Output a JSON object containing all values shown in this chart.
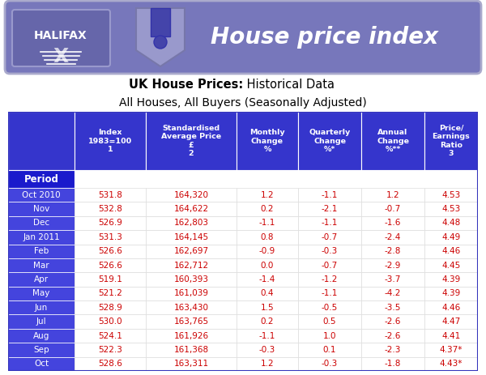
{
  "title_bold": "UK House Prices:",
  "title_normal": " Historical Data",
  "subtitle": "All Houses, All Buyers (Seasonally Adjusted)",
  "header_bg": "#3535cc",
  "period_bg": "#1a1a99",
  "row_bg_white": "#ffffff",
  "period_col_bg": "#4444dd",
  "banner_bg": "#7777bb",
  "col_headers": [
    "Index\n1983=100\n1",
    "Standardised\nAverage Price\n£\n2",
    "Monthly\nChange\n%",
    "Quarterly\nChange\n%*",
    "Annual\nChange\n%**",
    "Price/\nEarnings\nRatio\n3"
  ],
  "periods": [
    "Oct 2010",
    "Nov",
    "Dec",
    "Jan 2011",
    "Feb",
    "Mar",
    "Apr",
    "May",
    "Jun",
    "Jul",
    "Aug",
    "Sep",
    "Oct"
  ],
  "data": [
    [
      "531.8",
      "164,320",
      "1.2",
      "-1.1",
      "1.2",
      "4.53"
    ],
    [
      "532.8",
      "164,622",
      "0.2",
      "-2.1",
      "-0.7",
      "4.53"
    ],
    [
      "526.9",
      "162,803",
      "-1.1",
      "-1.1",
      "-1.6",
      "4.48"
    ],
    [
      "531.3",
      "164,145",
      "0.8",
      "-0.7",
      "-2.4",
      "4.49"
    ],
    [
      "526.6",
      "162,697",
      "-0.9",
      "-0.3",
      "-2.8",
      "4.46"
    ],
    [
      "526.6",
      "162,712",
      "0.0",
      "-0.7",
      "-2.9",
      "4.45"
    ],
    [
      "519.1",
      "160,393",
      "-1.4",
      "-1.2",
      "-3.7",
      "4.39"
    ],
    [
      "521.2",
      "161,039",
      "0.4",
      "-1.1",
      "-4.2",
      "4.39"
    ],
    [
      "528.9",
      "163,430",
      "1.5",
      "-0.5",
      "-3.5",
      "4.46"
    ],
    [
      "530.0",
      "163,765",
      "0.2",
      "0.5",
      "-2.6",
      "4.47"
    ],
    [
      "524.1",
      "161,926",
      "-1.1",
      "1.0",
      "-2.6",
      "4.41"
    ],
    [
      "522.3",
      "161,368",
      "-0.3",
      "0.1",
      "-2.3",
      "4.37*"
    ],
    [
      "528.6",
      "163,311",
      "1.2",
      "-0.3",
      "-1.8",
      "4.43*"
    ]
  ],
  "header_text_color": "#ffffff",
  "period_text_color": "#ffffff",
  "data_text_color": "#cc0000",
  "fig_bg": "#ffffff",
  "banner_color": "#7777bb",
  "banner_border_color": "#aaaacc",
  "period_label_bg": "#1a1acc"
}
